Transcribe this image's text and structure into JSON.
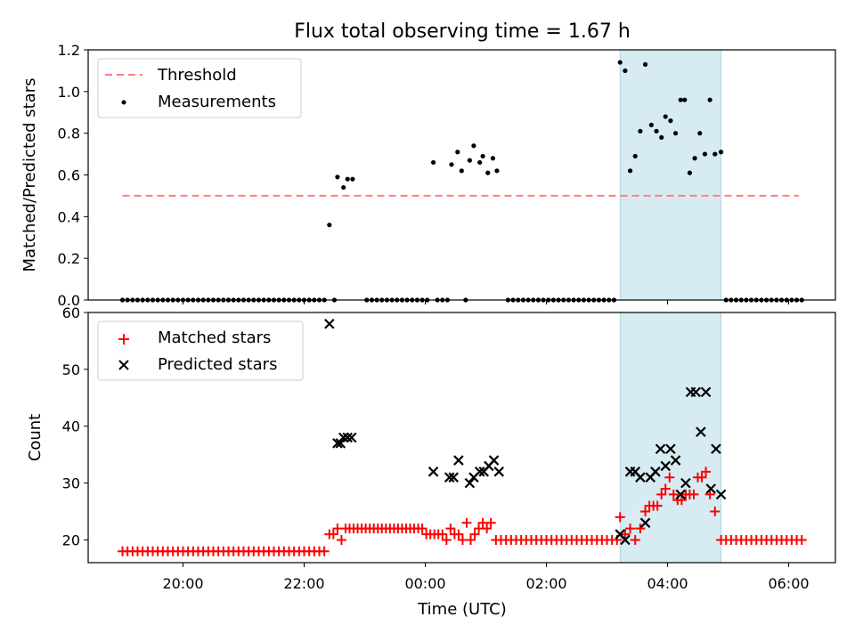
{
  "title": "Flux total observing time = 1.67 h",
  "colors": {
    "threshold": "#ff7f7f",
    "measurement": "#000000",
    "matched": "#ff0000",
    "predicted": "#000000",
    "highlight": "#add8e6"
  },
  "chart_data": [
    {
      "type": "scatter",
      "panel": "top",
      "ylabel": "Matched/Predicted stars",
      "xlabel": "",
      "ylim": [
        0,
        1.2
      ],
      "y_ticks": [
        "0.0",
        "0.2",
        "0.4",
        "0.6",
        "0.8",
        "1.0",
        "1.2"
      ],
      "x_ticks": [
        "20:00",
        "22:00",
        "00:00",
        "02:00",
        "04:00",
        "06:00"
      ],
      "highlight_span": [
        "03:13",
        "04:53"
      ],
      "threshold": 0.5,
      "threshold_range": [
        "19:00",
        "06:10"
      ],
      "legend_position": "upper left",
      "series": [
        {
          "name": "Threshold",
          "style": "dashed-line",
          "x": [
            "19:00",
            "06:10"
          ],
          "y": [
            0.5,
            0.5
          ]
        },
        {
          "name": "Measurements",
          "style": "dots",
          "x": [
            "22:25",
            "22:33",
            "22:39",
            "22:43",
            "22:48",
            "00:08",
            "00:26",
            "00:32",
            "00:36",
            "00:44",
            "00:48",
            "00:54",
            "00:57",
            "01:02",
            "01:07",
            "01:11",
            "03:13",
            "03:18",
            "03:23",
            "03:28",
            "03:33",
            "03:38",
            "03:44",
            "03:49",
            "03:54",
            "03:58",
            "04:03",
            "04:08",
            "04:13",
            "04:17",
            "04:22",
            "04:27",
            "04:32",
            "04:37",
            "04:42",
            "04:47",
            "04:53"
          ],
          "y": [
            0.36,
            0.59,
            0.54,
            0.58,
            0.58,
            0.66,
            0.65,
            0.71,
            0.62,
            0.67,
            0.74,
            0.66,
            0.69,
            0.61,
            0.68,
            0.62,
            1.14,
            1.1,
            0.62,
            0.69,
            0.81,
            1.13,
            0.84,
            0.81,
            0.78,
            0.88,
            0.86,
            0.8,
            0.96,
            0.96,
            0.61,
            0.68,
            0.8,
            0.7,
            0.96,
            0.7,
            0.71
          ]
        },
        {
          "name": "",
          "style": "dots",
          "x": [
            "19:00",
            "19:05",
            "19:10",
            "19:15",
            "19:20",
            "19:25",
            "19:30",
            "19:35",
            "19:40",
            "19:45",
            "19:50",
            "19:55",
            "20:00",
            "20:05",
            "20:10",
            "20:15",
            "20:20",
            "20:25",
            "20:30",
            "20:35",
            "20:40",
            "20:45",
            "20:50",
            "20:55",
            "21:00",
            "21:05",
            "21:10",
            "21:15",
            "21:20",
            "21:25",
            "21:30",
            "21:35",
            "21:40",
            "21:45",
            "21:50",
            "21:55",
            "22:00",
            "22:05",
            "22:10",
            "22:15",
            "22:20",
            "22:30",
            "23:02",
            "23:07",
            "23:12",
            "23:17",
            "23:22",
            "23:27",
            "23:32",
            "23:37",
            "23:42",
            "23:47",
            "23:52",
            "23:57",
            "00:02",
            "00:12",
            "00:17",
            "00:22",
            "00:40",
            "01:22",
            "01:27",
            "01:32",
            "01:37",
            "01:42",
            "01:47",
            "01:52",
            "01:57",
            "02:02",
            "02:07",
            "02:12",
            "02:17",
            "02:22",
            "02:27",
            "02:32",
            "02:37",
            "02:42",
            "02:47",
            "02:52",
            "02:57",
            "03:02",
            "03:07",
            "04:58",
            "05:03",
            "05:08",
            "05:13",
            "05:18",
            "05:23",
            "05:28",
            "05:33",
            "05:38",
            "05:43",
            "05:48",
            "05:53",
            "05:58",
            "06:03",
            "06:08",
            "06:13"
          ],
          "y": [
            0,
            0,
            0,
            0,
            0,
            0,
            0,
            0,
            0,
            0,
            0,
            0,
            0,
            0,
            0,
            0,
            0,
            0,
            0,
            0,
            0,
            0,
            0,
            0,
            0,
            0,
            0,
            0,
            0,
            0,
            0,
            0,
            0,
            0,
            0,
            0,
            0,
            0,
            0,
            0,
            0,
            0,
            0,
            0,
            0,
            0,
            0,
            0,
            0,
            0,
            0,
            0,
            0,
            0,
            0,
            0,
            0,
            0,
            0,
            0,
            0,
            0,
            0,
            0,
            0,
            0,
            0,
            0,
            0,
            0,
            0,
            0,
            0,
            0,
            0,
            0,
            0,
            0,
            0,
            0,
            0,
            0,
            0,
            0,
            0,
            0,
            0,
            0,
            0,
            0,
            0,
            0,
            0,
            0,
            0,
            0,
            0
          ]
        }
      ]
    },
    {
      "type": "scatter",
      "panel": "bottom",
      "ylabel": "Count",
      "xlabel": "Time (UTC)",
      "ylim": [
        16,
        60
      ],
      "y_ticks": [
        "20",
        "30",
        "40",
        "50",
        "60"
      ],
      "x_ticks": [
        "20:00",
        "22:00",
        "00:00",
        "02:00",
        "04:00",
        "06:00"
      ],
      "highlight_span": [
        "03:13",
        "04:53"
      ],
      "legend_position": "upper left",
      "series": [
        {
          "name": "Matched stars",
          "marker": "plus",
          "x": [
            "19:00",
            "19:05",
            "19:10",
            "19:15",
            "19:20",
            "19:25",
            "19:30",
            "19:35",
            "19:40",
            "19:45",
            "19:50",
            "19:55",
            "20:00",
            "20:05",
            "20:10",
            "20:15",
            "20:20",
            "20:25",
            "20:30",
            "20:35",
            "20:40",
            "20:45",
            "20:50",
            "20:55",
            "21:00",
            "21:05",
            "21:10",
            "21:15",
            "21:20",
            "21:25",
            "21:30",
            "21:35",
            "21:40",
            "21:45",
            "21:50",
            "21:55",
            "22:00",
            "22:05",
            "22:10",
            "22:15",
            "22:20",
            "22:25",
            "22:29",
            "22:33",
            "22:37",
            "22:41",
            "22:45",
            "22:49",
            "22:53",
            "22:57",
            "23:01",
            "23:05",
            "23:09",
            "23:13",
            "23:17",
            "23:21",
            "23:25",
            "23:29",
            "23:33",
            "23:37",
            "23:41",
            "23:45",
            "23:49",
            "23:53",
            "23:57",
            "00:01",
            "00:05",
            "00:09",
            "00:13",
            "00:17",
            "00:21",
            "00:25",
            "00:29",
            "00:33",
            "00:37",
            "00:41",
            "00:45",
            "00:49",
            "00:53",
            "00:57",
            "01:01",
            "01:05",
            "01:10",
            "01:15",
            "01:20",
            "01:25",
            "01:30",
            "01:35",
            "01:40",
            "01:45",
            "01:50",
            "01:55",
            "02:00",
            "02:05",
            "02:10",
            "02:15",
            "02:20",
            "02:25",
            "02:30",
            "02:35",
            "02:40",
            "02:45",
            "02:50",
            "02:55",
            "03:00",
            "03:05",
            "03:10",
            "03:13",
            "03:18",
            "03:23",
            "03:28",
            "03:33",
            "03:38",
            "03:42",
            "03:46",
            "03:50",
            "03:54",
            "03:58",
            "04:02",
            "04:06",
            "04:10",
            "04:14",
            "04:18",
            "04:22",
            "04:26",
            "04:30",
            "04:34",
            "04:38",
            "04:42",
            "04:47",
            "04:53",
            "04:58",
            "05:03",
            "05:08",
            "05:13",
            "05:18",
            "05:23",
            "05:28",
            "05:33",
            "05:38",
            "05:43",
            "05:48",
            "05:53",
            "05:58",
            "06:03",
            "06:08",
            "06:13"
          ],
          "y": [
            18,
            18,
            18,
            18,
            18,
            18,
            18,
            18,
            18,
            18,
            18,
            18,
            18,
            18,
            18,
            18,
            18,
            18,
            18,
            18,
            18,
            18,
            18,
            18,
            18,
            18,
            18,
            18,
            18,
            18,
            18,
            18,
            18,
            18,
            18,
            18,
            18,
            18,
            18,
            18,
            18,
            21,
            21,
            22,
            20,
            22,
            22,
            22,
            22,
            22,
            22,
            22,
            22,
            22,
            22,
            22,
            22,
            22,
            22,
            22,
            22,
            22,
            22,
            22,
            22,
            21,
            21,
            21,
            21,
            21,
            20,
            22,
            21,
            21,
            20,
            23,
            20,
            21,
            22,
            23,
            22,
            23,
            20,
            20,
            20,
            20,
            20,
            20,
            20,
            20,
            20,
            20,
            20,
            20,
            20,
            20,
            20,
            20,
            20,
            20,
            20,
            20,
            20,
            20,
            20,
            20,
            20,
            24,
            21,
            22,
            20,
            22,
            25,
            26,
            26,
            26,
            28,
            29,
            31,
            28,
            27,
            27,
            28,
            28,
            28,
            31,
            31,
            32,
            28,
            25,
            20,
            20,
            20,
            20,
            20,
            20,
            20,
            20,
            20,
            20,
            20,
            20,
            20,
            20,
            20,
            20,
            20
          ]
        },
        {
          "name": "Predicted stars",
          "marker": "x",
          "x": [
            "22:25",
            "22:33",
            "22:36",
            "22:39",
            "22:43",
            "22:47",
            "00:08",
            "00:24",
            "00:28",
            "00:33",
            "00:44",
            "00:48",
            "00:54",
            "00:58",
            "01:03",
            "01:08",
            "01:13",
            "03:13",
            "03:18",
            "03:23",
            "03:28",
            "03:33",
            "03:38",
            "03:43",
            "03:48",
            "03:53",
            "03:58",
            "04:03",
            "04:08",
            "04:13",
            "04:18",
            "04:23",
            "04:28",
            "04:33",
            "04:38",
            "04:43",
            "04:48",
            "04:53"
          ],
          "y": [
            58,
            37,
            37,
            38,
            38,
            38,
            32,
            31,
            31,
            34,
            30,
            31,
            32,
            32,
            33,
            34,
            32,
            21,
            20,
            32,
            32,
            31,
            23,
            31,
            32,
            36,
            33,
            36,
            34,
            28,
            30,
            46,
            46,
            39,
            46,
            29,
            36,
            28
          ]
        }
      ]
    }
  ]
}
